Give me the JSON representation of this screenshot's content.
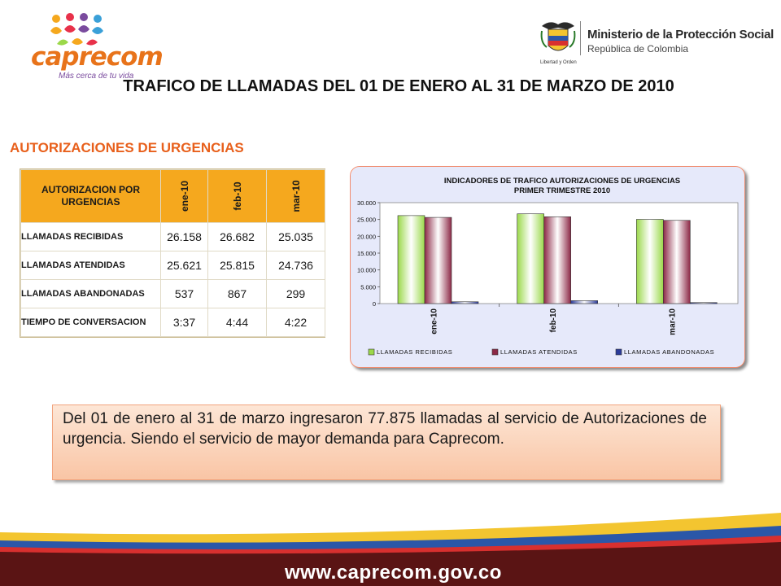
{
  "header": {
    "brand": {
      "name": "caprecom",
      "slogan": "Más cerca de tu vida"
    },
    "ministry": {
      "name": "Ministerio de la Protección Social",
      "subtitle": "República de Colombia",
      "motto": "Libertad y Orden"
    },
    "title": "TRAFICO DE LLAMADAS DEL 01 DE ENERO AL 31 DE MARZO  DE 2010"
  },
  "section_title": "AUTORIZACIONES DE URGENCIAS",
  "table": {
    "header_label": "AUTORIZACION POR URGENCIAS",
    "columns": [
      "ene-10",
      "feb-10",
      "mar-10"
    ],
    "rows": [
      {
        "label": "LLAMADAS RECIBIDAS",
        "values": [
          "26.158",
          "26.682",
          "25.035"
        ]
      },
      {
        "label": "LLAMADAS ATENDIDAS",
        "values": [
          "25.621",
          "25.815",
          "24.736"
        ]
      },
      {
        "label": "LLAMADAS ABANDONADAS",
        "values": [
          "537",
          "867",
          "299"
        ]
      },
      {
        "label": "TIEMPO DE CONVERSACION",
        "values": [
          "3:37",
          "4:44",
          "4:22"
        ]
      }
    ]
  },
  "chart_data": {
    "type": "bar",
    "title_lines": [
      "INDICADORES DE TRAFICO AUTORIZACIONES DE URGENCIAS",
      "PRIMER TRIMESTRE 2010"
    ],
    "categories": [
      "ene-10",
      "feb-10",
      "mar-10"
    ],
    "series": [
      {
        "name": "LLAMADAS RECIBIDAS",
        "values": [
          26158,
          26682,
          25035
        ],
        "color": "#9bd84a"
      },
      {
        "name": "LLAMADAS ATENDIDAS",
        "values": [
          25621,
          25815,
          24736
        ],
        "color": "#8c2846"
      },
      {
        "name": "LLAMADAS ABANDONADAS",
        "values": [
          537,
          867,
          299
        ],
        "color": "#2a3a9a"
      }
    ],
    "yticks": [
      "0",
      "5.000",
      "10.000",
      "15.000",
      "20.000",
      "25.000",
      "30.000"
    ],
    "ylim": [
      0,
      30000
    ],
    "legend_position": "bottom",
    "plot_background": "#cdd3f5"
  },
  "summary_text": "Del 01 de enero al 31 de marzo ingresaron 77.875 llamadas al servicio de Autorizaciones de urgencia. Siendo el servicio de mayor demanda para Caprecom.",
  "footer": {
    "url": "www.caprecom.gov.co"
  }
}
